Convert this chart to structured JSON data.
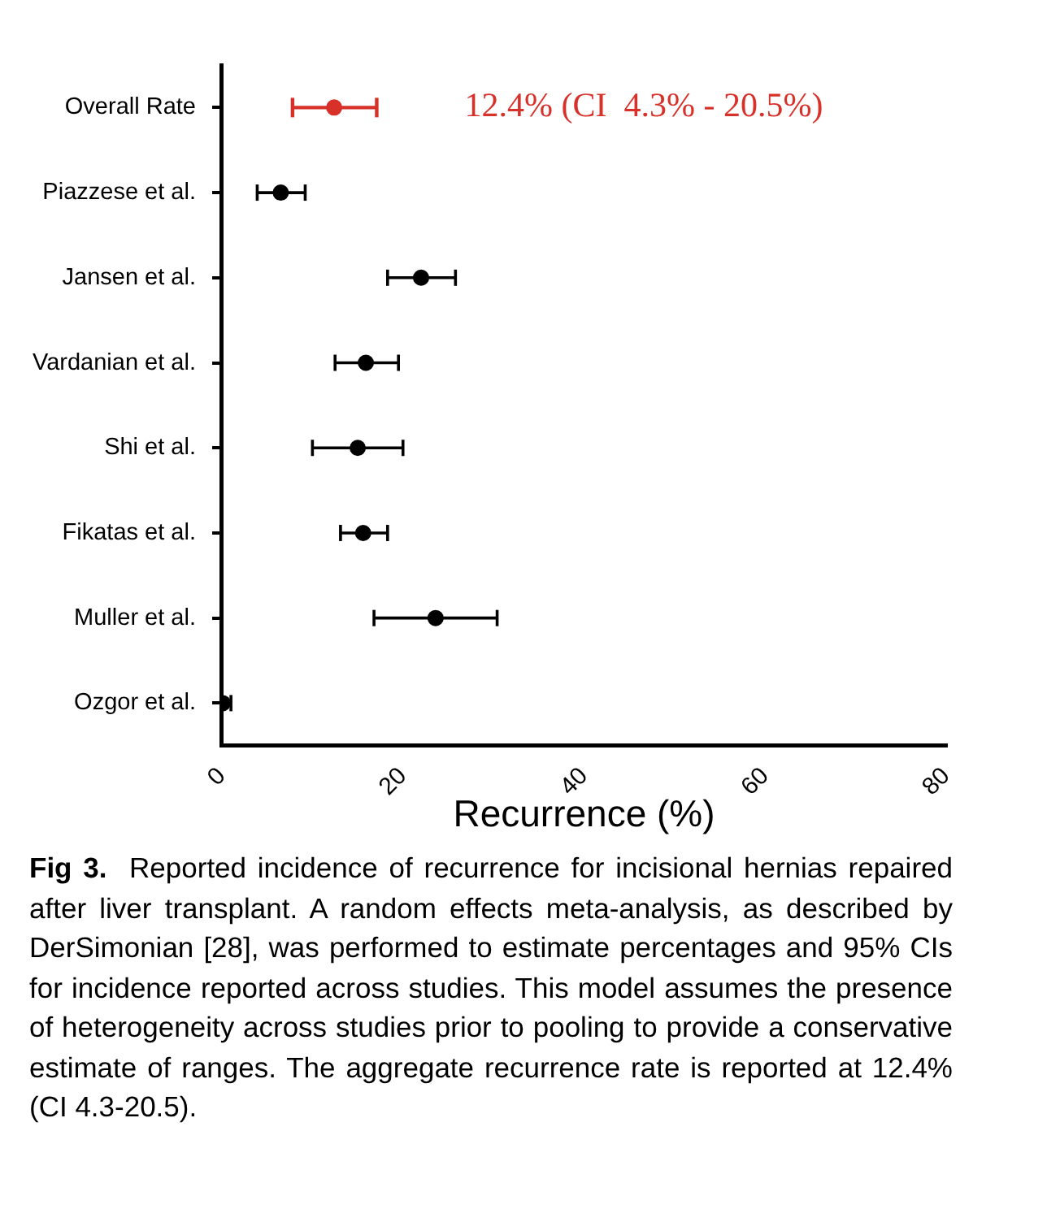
{
  "chart_data": {
    "type": "scatter",
    "orientation": "horizontal",
    "categories": [
      "Overall Rate",
      "Piazzese et al.",
      "Jansen et al.",
      "Vardanian et al.",
      "Shi et al.",
      "Fikatas et al.",
      "Muller et al.",
      "Ozgor et al."
    ],
    "values": [
      12.4,
      6.5,
      22.0,
      15.9,
      15.0,
      15.6,
      23.6,
      0.1
    ],
    "errors": [
      [
        7.8,
        17.1
      ],
      [
        3.9,
        9.2
      ],
      [
        18.3,
        25.8
      ],
      [
        12.5,
        19.5
      ],
      [
        10.0,
        20.0
      ],
      [
        13.1,
        18.3
      ],
      [
        16.8,
        30.4
      ],
      [
        0,
        1.0
      ]
    ],
    "colors": [
      "#d7312a",
      "#000000",
      "#000000",
      "#000000",
      "#000000",
      "#000000",
      "#000000",
      "#000000"
    ],
    "marker": "circle",
    "xlabel": "Recurrence (%)",
    "xlim": [
      0,
      80
    ],
    "xticks": [
      0,
      20,
      40,
      60,
      80
    ],
    "grid": false,
    "legend": false,
    "annotations": [
      "12.4% (CI  4.3% - 20.5%)",
      "Fig 3.",
      "Reported incidence of recurrence for incisional hernias repaired after liver transplant. A random effects meta-analysis, as described by DerSimonian [28], was performed to estimate percentages and 95% CIs for incidence reported across studies. This model assumes the presence of heterogeneity across studies prior to pooling to provide a conservative estimate of ranges. The aggregate recurrence rate is reported at 12.4% (CI 4.3-20.5)."
    ]
  }
}
